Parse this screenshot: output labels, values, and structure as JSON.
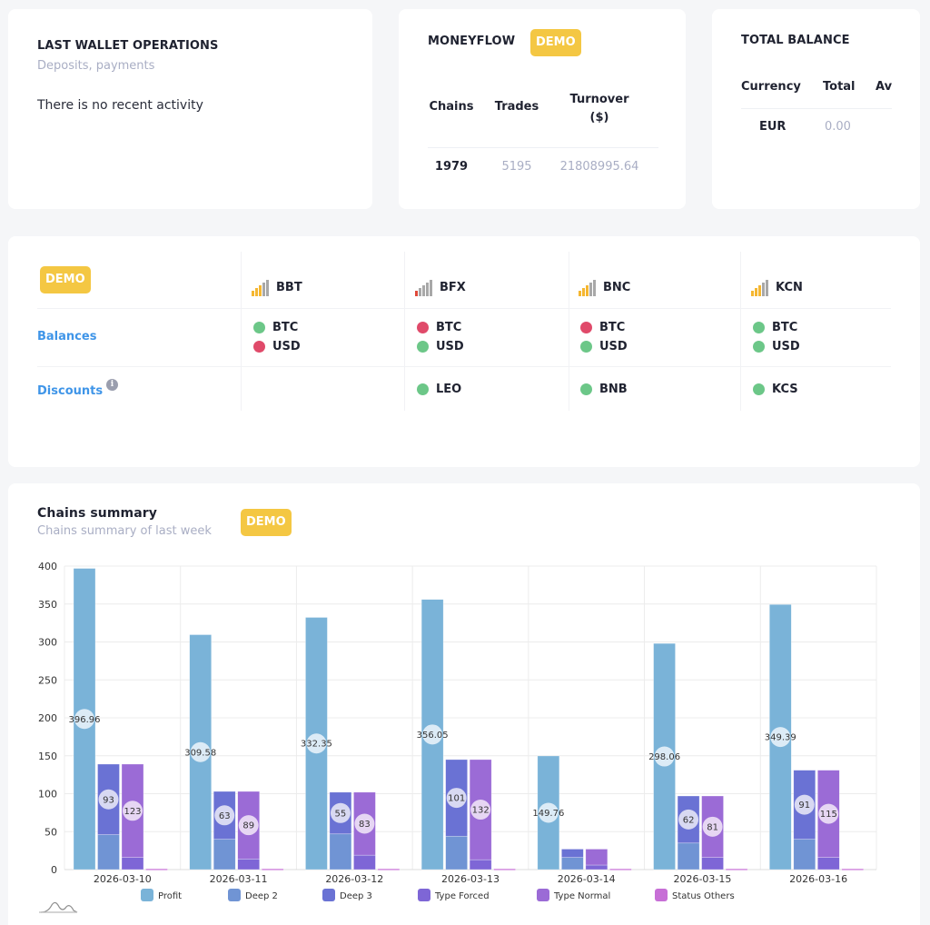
{
  "wallet": {
    "title": "LAST WALLET OPERATIONS",
    "subtitle": "Deposits, payments",
    "empty_message": "There is no recent activity"
  },
  "moneyflow": {
    "title": "MONEYFLOW",
    "badge": "DEMO",
    "headers": [
      "Chains",
      "Trades",
      "Turnover ($)"
    ],
    "values": [
      "1979",
      "5195",
      "21808995.64"
    ]
  },
  "total_balance": {
    "title": "TOTAL BALANCE",
    "headers": [
      "Currency",
      "Total",
      "Av"
    ],
    "rows": [
      {
        "currency": "EUR",
        "total": "0.00"
      }
    ]
  },
  "exchanges": {
    "badge": "DEMO",
    "row_labels": {
      "balances": "Balances",
      "discounts": "Discounts"
    },
    "info_icon": "i",
    "colors": {
      "ok": "#6cc788",
      "bad": "#e04a6a",
      "signal_on": "#f5b731",
      "signal_off": "#a8a8a8",
      "signal_low": "#e04a3a"
    },
    "items": [
      {
        "name": "BBT",
        "signal_level": 3,
        "signal_state": "good",
        "balances": [
          {
            "asset": "BTC",
            "status": "ok"
          },
          {
            "asset": "USD",
            "status": "bad"
          }
        ],
        "discounts": []
      },
      {
        "name": "BFX",
        "signal_level": 1,
        "signal_state": "low",
        "balances": [
          {
            "asset": "BTC",
            "status": "bad"
          },
          {
            "asset": "USD",
            "status": "ok"
          }
        ],
        "discounts": [
          {
            "asset": "LEO",
            "status": "ok"
          }
        ]
      },
      {
        "name": "BNC",
        "signal_level": 3,
        "signal_state": "good",
        "balances": [
          {
            "asset": "BTC",
            "status": "bad"
          },
          {
            "asset": "USD",
            "status": "ok"
          }
        ],
        "discounts": [
          {
            "asset": "BNB",
            "status": "ok"
          }
        ]
      },
      {
        "name": "KCN",
        "signal_level": 3,
        "signal_state": "good",
        "balances": [
          {
            "asset": "BTC",
            "status": "ok"
          },
          {
            "asset": "USD",
            "status": "ok"
          }
        ],
        "discounts": [
          {
            "asset": "KCS",
            "status": "ok"
          }
        ]
      }
    ]
  },
  "chains_summary": {
    "title": "Chains summary",
    "subtitle": "Chains summary of last week",
    "badge": "DEMO"
  },
  "chart_data": {
    "type": "bar",
    "title": "Chains summary",
    "categories": [
      "2026-03-10",
      "2026-03-11",
      "2026-03-12",
      "2026-03-13",
      "2026-03-14",
      "2026-03-15",
      "2026-03-16"
    ],
    "ylim": [
      0,
      400
    ],
    "yticks": [
      0,
      50,
      100,
      150,
      200,
      250,
      300,
      350,
      400
    ],
    "grid": true,
    "legend_position": "bottom",
    "series": [
      {
        "name": "Profit",
        "stack": "profit",
        "color": "#7ab3d8",
        "values": [
          396.96,
          309.58,
          332.35,
          356.05,
          149.76,
          298.06,
          349.39
        ],
        "labels": [
          "396.96",
          "309.58",
          "332.35",
          "356.05",
          "149.76",
          "298.06",
          "349.39"
        ]
      },
      {
        "name": "Deep 2",
        "stack": "deep",
        "color": "#7094d4",
        "values": [
          46,
          40,
          47,
          44,
          16,
          35,
          40
        ],
        "labels": []
      },
      {
        "name": "Deep 3",
        "stack": "deep",
        "color": "#6a72d4",
        "values": [
          93,
          63,
          55,
          101,
          11,
          62,
          91
        ],
        "labels": [
          "93",
          "63",
          "55",
          "101",
          "",
          "62",
          "91"
        ]
      },
      {
        "name": "Type Forced",
        "stack": "type",
        "color": "#7e66d6",
        "values": [
          16,
          14,
          19,
          13,
          6,
          16,
          16
        ],
        "labels": []
      },
      {
        "name": "Type Normal",
        "stack": "type",
        "color": "#9b6bd6",
        "values": [
          123,
          89,
          83,
          132,
          21,
          81,
          115
        ],
        "labels": [
          "123",
          "89",
          "83",
          "132",
          "",
          "81",
          "115"
        ]
      },
      {
        "name": "Status Others",
        "stack": "status",
        "color": "#c76fd6",
        "values": [
          1,
          1,
          1,
          1,
          1,
          1,
          1
        ],
        "labels": []
      }
    ]
  }
}
